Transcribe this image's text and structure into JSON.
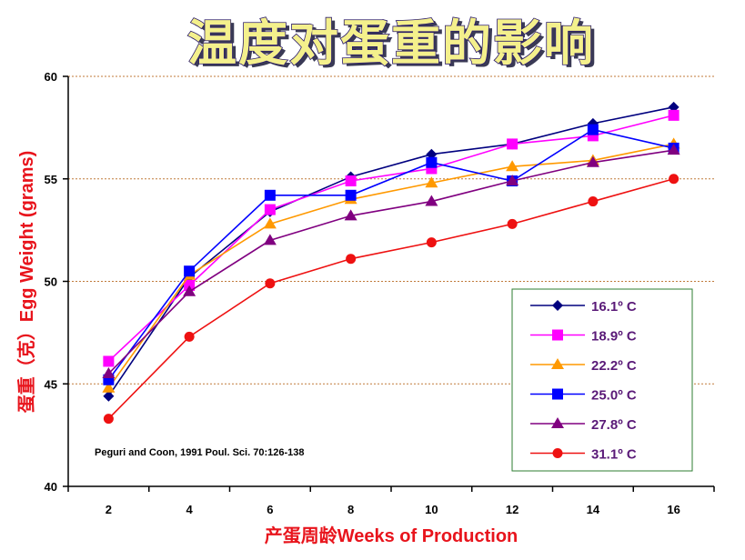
{
  "chart_data": {
    "type": "line",
    "title": "温度对蛋重的影响",
    "xlabel": "产蛋周龄Weeks of Production",
    "ylabel": "蛋重（克）Egg Weight (grams)",
    "x": [
      2,
      4,
      6,
      8,
      10,
      12,
      14,
      16
    ],
    "xlim": [
      1,
      17
    ],
    "ylim": [
      40,
      60
    ],
    "yticks": [
      40,
      45,
      50,
      55,
      60
    ],
    "grid": "horizontal dashed",
    "legend_position": "bottom-right",
    "annotation": "Peguri and Coon, 1991 Poul. Sci. 70:126-138",
    "series": [
      {
        "name": "16.1º C",
        "color": "#00007f",
        "marker": "diamond",
        "values": [
          44.4,
          50.2,
          53.4,
          55.1,
          56.2,
          56.7,
          57.7,
          58.5
        ]
      },
      {
        "name": "18.9º C",
        "color": "#ff00ff",
        "marker": "square",
        "values": [
          46.1,
          49.8,
          53.5,
          54.9,
          55.5,
          56.7,
          57.1,
          58.1
        ]
      },
      {
        "name": "22.2º C",
        "color": "#ff9900",
        "marker": "triangle",
        "values": [
          44.8,
          50.3,
          52.8,
          54.0,
          54.8,
          55.6,
          55.9,
          56.7
        ]
      },
      {
        "name": "25.0º C",
        "color": "#0000ff",
        "marker": "square",
        "values": [
          45.2,
          50.5,
          54.2,
          54.2,
          55.8,
          54.9,
          57.4,
          56.5
        ]
      },
      {
        "name": "27.8º C",
        "color": "#800080",
        "marker": "triangle",
        "values": [
          45.5,
          49.5,
          52.0,
          53.2,
          53.9,
          54.9,
          55.8,
          56.4
        ]
      },
      {
        "name": "31.1º C",
        "color": "#ee1111",
        "marker": "circle",
        "values": [
          43.3,
          47.3,
          49.9,
          51.1,
          51.9,
          52.8,
          53.9,
          55.0
        ]
      }
    ]
  }
}
